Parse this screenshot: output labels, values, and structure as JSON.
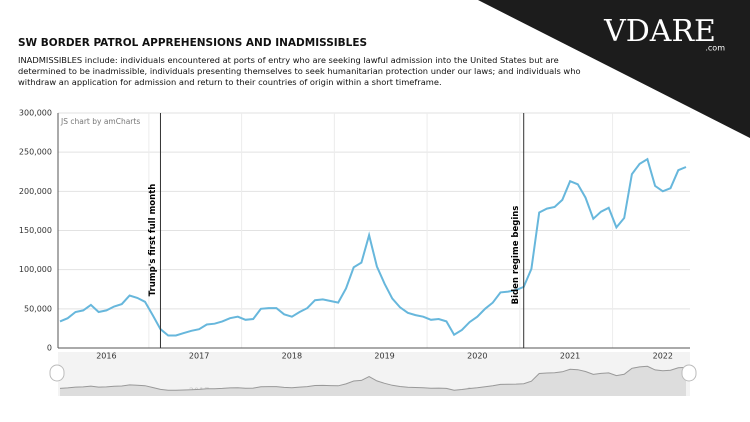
{
  "brand": {
    "name": "VDARE",
    "suffix": ".com"
  },
  "chart_data": {
    "type": "line",
    "title": "SW BORDER PATROL APPREHENSIONS AND INADMISSIBLES",
    "subtitle": "INADMISSIBLES include: individuals encountered at ports of entry who are seeking lawful admission into the United States but are determined to be inadmissible, individuals presenting themselves to seek humanitarian protection under our laws; and individuals who withdraw an application for admission and return to their countries of origin within a short timeframe.",
    "credit": "JS chart by amCharts",
    "annotations": [
      "Trump's first full month",
      "Biden regime begins"
    ],
    "categories": [
      null,
      null,
      null,
      null,
      null,
      null,
      "2016",
      null,
      null,
      null,
      null,
      null,
      null,
      null,
      null,
      null,
      null,
      null,
      "2017",
      null,
      null,
      null,
      null,
      null,
      null,
      null,
      null,
      null,
      null,
      null,
      "2018",
      null,
      null,
      null,
      null,
      null,
      null,
      null,
      null,
      null,
      null,
      null,
      "2019",
      null,
      null,
      null,
      null,
      null,
      null,
      null,
      null,
      null,
      null,
      null,
      "2020",
      null,
      null,
      null,
      null,
      null,
      null,
      null,
      null,
      null,
      null,
      null,
      "2021",
      null,
      null,
      null,
      null,
      null,
      null,
      null,
      null,
      null,
      null,
      null,
      "2022",
      null,
      null,
      null
    ],
    "values": [
      34000,
      38000,
      46000,
      48000,
      55000,
      46000,
      48000,
      53000,
      56000,
      67000,
      64000,
      59000,
      42000,
      24000,
      16000,
      16000,
      19000,
      22000,
      24000,
      30000,
      31000,
      34000,
      38000,
      40000,
      36000,
      37000,
      50000,
      51000,
      51000,
      43000,
      40000,
      46000,
      51000,
      61000,
      62000,
      60000,
      58000,
      76000,
      103000,
      109000,
      144000,
      104000,
      82000,
      63000,
      52000,
      45000,
      42000,
      40000,
      36000,
      37000,
      34000,
      17000,
      23000,
      33000,
      40000,
      50000,
      58000,
      71000,
      72000,
      74000,
      78000,
      101000,
      173000,
      178000,
      180000,
      189000,
      213000,
      209000,
      192000,
      165000,
      174000,
      179000,
      154000,
      166000,
      222000,
      235000,
      241000,
      207000,
      200000,
      204000,
      227000,
      231000
    ],
    "color": "#67b7dc",
    "ylim": [
      0,
      300000
    ],
    "yticks": [
      0,
      {
        "value": 50000,
        "label": "50,000"
      },
      {
        "value": 100000,
        "label": "100,000"
      },
      {
        "value": 150000,
        "label": "150,000"
      },
      {
        "value": 200000,
        "label": "200,000"
      },
      {
        "value": 250000,
        "label": "250,000"
      },
      {
        "value": 300000,
        "label": "300,000"
      }
    ],
    "grid": true
  }
}
